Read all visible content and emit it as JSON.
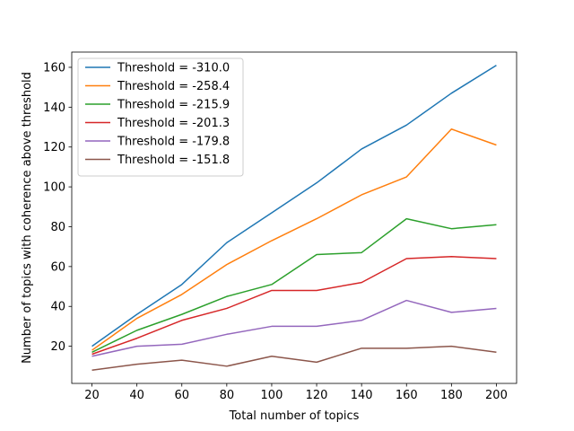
{
  "chart_data": {
    "type": "line",
    "title": "",
    "xlabel": "Total number of topics",
    "ylabel": "Number of topics with coherence above threshold",
    "x": [
      20,
      40,
      60,
      80,
      100,
      120,
      140,
      160,
      180,
      200
    ],
    "xticks": [
      20,
      40,
      60,
      80,
      100,
      120,
      140,
      160,
      180,
      200
    ],
    "yticks": [
      20,
      40,
      60,
      80,
      100,
      120,
      140,
      160
    ],
    "xlim": [
      11,
      209
    ],
    "ylim": [
      1.35,
      167.65
    ],
    "grid": false,
    "legend_position": "top-left",
    "series": [
      {
        "name": "Threshold = -310.0",
        "color": "#1f77b4",
        "values": [
          20,
          36,
          51,
          72,
          87,
          102,
          119,
          131,
          147,
          161
        ]
      },
      {
        "name": "Threshold = -258.4",
        "color": "#ff7f0e",
        "values": [
          18,
          34,
          46,
          61,
          73,
          84,
          96,
          105,
          129,
          121
        ]
      },
      {
        "name": "Threshold = -215.9",
        "color": "#2ca02c",
        "values": [
          17,
          28,
          36,
          45,
          51,
          66,
          67,
          84,
          79,
          81
        ]
      },
      {
        "name": "Threshold = -201.3",
        "color": "#d62728",
        "values": [
          16,
          24,
          33,
          39,
          48,
          48,
          52,
          64,
          65,
          64
        ]
      },
      {
        "name": "Threshold = -179.8",
        "color": "#9467bd",
        "values": [
          15,
          20,
          21,
          26,
          30,
          30,
          33,
          43,
          37,
          39
        ]
      },
      {
        "name": "Threshold = -151.8",
        "color": "#8c564b",
        "values": [
          8,
          11,
          13,
          10,
          15,
          12,
          19,
          19,
          20,
          17
        ]
      }
    ]
  }
}
